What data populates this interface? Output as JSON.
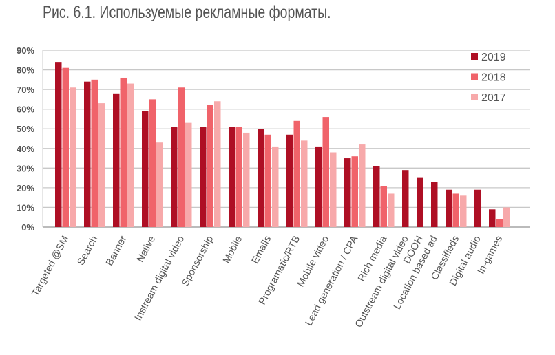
{
  "chart_data": {
    "type": "bar",
    "title": "Рис. 6.1. Используемые рекламные форматы.",
    "xlabel": "",
    "ylabel": "",
    "ylim": [
      0,
      90
    ],
    "yticks": [
      "0%",
      "10%",
      "20%",
      "30%",
      "40%",
      "50%",
      "60%",
      "70%",
      "80%",
      "90%"
    ],
    "grid": true,
    "legend_position": "top-right",
    "categories": [
      "Targeted @SM",
      "Search",
      "Banner",
      "Native",
      "Instream digital video",
      "Sponsorship",
      "Mobile",
      "Emails",
      "Programatic/RTB",
      "Mobile video",
      "Lead generation / CPA",
      "Rich media",
      "Outstream digital video",
      "DOOH",
      "Location based ad",
      "Classifieds",
      "Digital audio",
      "In-games"
    ],
    "series": [
      {
        "name": "2019",
        "color": "#ae0f24",
        "values": [
          84,
          74,
          68,
          59,
          51,
          51,
          51,
          50,
          47,
          41,
          35,
          31,
          29,
          25,
          23,
          19,
          19,
          9
        ]
      },
      {
        "name": "2018",
        "color": "#f0636a",
        "values": [
          81,
          75,
          76,
          65,
          71,
          62,
          51,
          47,
          54,
          56,
          36,
          21,
          null,
          null,
          null,
          17,
          null,
          4
        ]
      },
      {
        "name": "2017",
        "color": "#f7a9aa",
        "values": [
          71,
          63,
          73,
          43,
          53,
          64,
          48,
          41,
          44,
          38,
          42,
          17,
          null,
          null,
          null,
          16,
          null,
          10
        ]
      }
    ]
  }
}
